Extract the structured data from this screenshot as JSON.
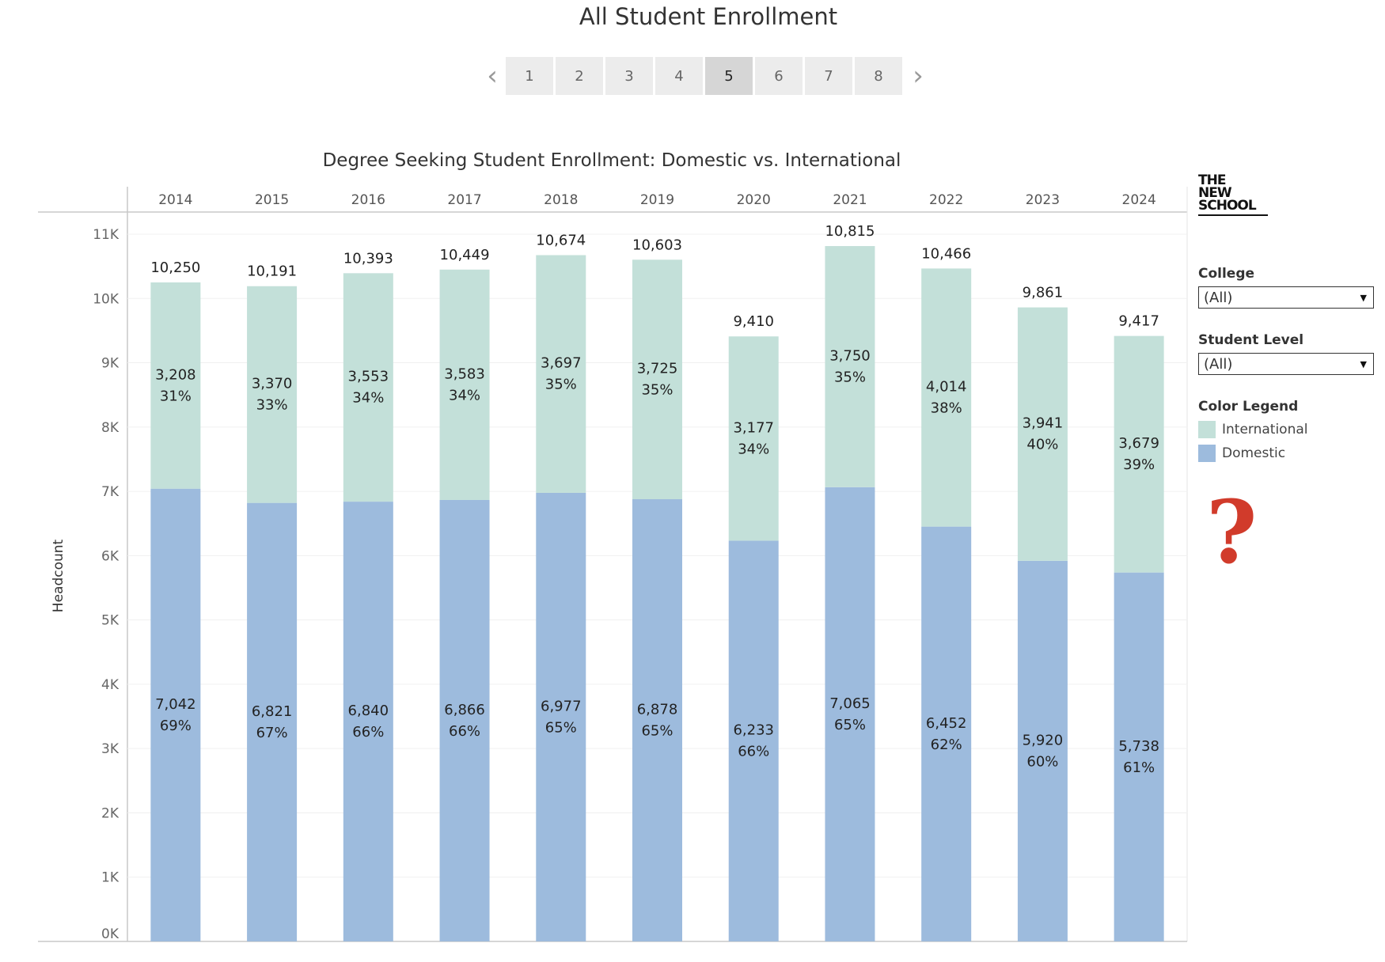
{
  "page_title": "All Student Enrollment",
  "pager": {
    "prev_icon": "chevron-left-icon",
    "next_icon": "chevron-right-icon",
    "pages": [
      "1",
      "2",
      "3",
      "4",
      "5",
      "6",
      "7",
      "8"
    ],
    "active_page": "5"
  },
  "sidebar": {
    "logo_lines": [
      "THE",
      "NEW",
      "SCHOOL"
    ],
    "college_label": "College",
    "college_value": "(All)",
    "student_level_label": "Student Level",
    "student_level_value": "(All)",
    "legend_title": "Color Legend",
    "legend": [
      {
        "label": "International",
        "color": "#c3e0d9"
      },
      {
        "label": "Domestic",
        "color": "#9dbbdd"
      }
    ],
    "help_glyph": "?"
  },
  "chart_data": {
    "type": "bar",
    "stacked": true,
    "title": "Degree Seeking Student Enrollment: Domestic vs. International",
    "ylabel": "Headcount",
    "xlabel": "",
    "ylim": [
      0,
      11000
    ],
    "yticks": [
      "0K",
      "1K",
      "2K",
      "3K",
      "4K",
      "5K",
      "6K",
      "7K",
      "8K",
      "9K",
      "10K",
      "11K"
    ],
    "grid": true,
    "categories": [
      "2014",
      "2015",
      "2016",
      "2017",
      "2018",
      "2019",
      "2020",
      "2021",
      "2022",
      "2023",
      "2024"
    ],
    "totals": [
      "10,250",
      "10,191",
      "10,393",
      "10,449",
      "10,674",
      "10,603",
      "9,410",
      "10,815",
      "10,466",
      "9,861",
      "9,417"
    ],
    "series": [
      {
        "name": "Domestic",
        "color": "#9dbbdd",
        "values": [
          7042,
          6821,
          6840,
          6866,
          6977,
          6878,
          6233,
          7065,
          6452,
          5920,
          5738
        ],
        "labels": [
          "7,042",
          "6,821",
          "6,840",
          "6,866",
          "6,977",
          "6,878",
          "6,233",
          "7,065",
          "6,452",
          "5,920",
          "5,738"
        ],
        "percents": [
          "69%",
          "67%",
          "66%",
          "66%",
          "65%",
          "65%",
          "66%",
          "65%",
          "62%",
          "60%",
          "61%"
        ]
      },
      {
        "name": "International",
        "color": "#c3e0d9",
        "values": [
          3208,
          3370,
          3553,
          3583,
          3697,
          3725,
          3177,
          3750,
          4014,
          3941,
          3679
        ],
        "labels": [
          "3,208",
          "3,370",
          "3,553",
          "3,583",
          "3,697",
          "3,725",
          "3,177",
          "3,750",
          "4,014",
          "3,941",
          "3,679"
        ],
        "percents": [
          "31%",
          "33%",
          "34%",
          "34%",
          "35%",
          "35%",
          "34%",
          "35%",
          "38%",
          "40%",
          "39%"
        ]
      }
    ]
  }
}
